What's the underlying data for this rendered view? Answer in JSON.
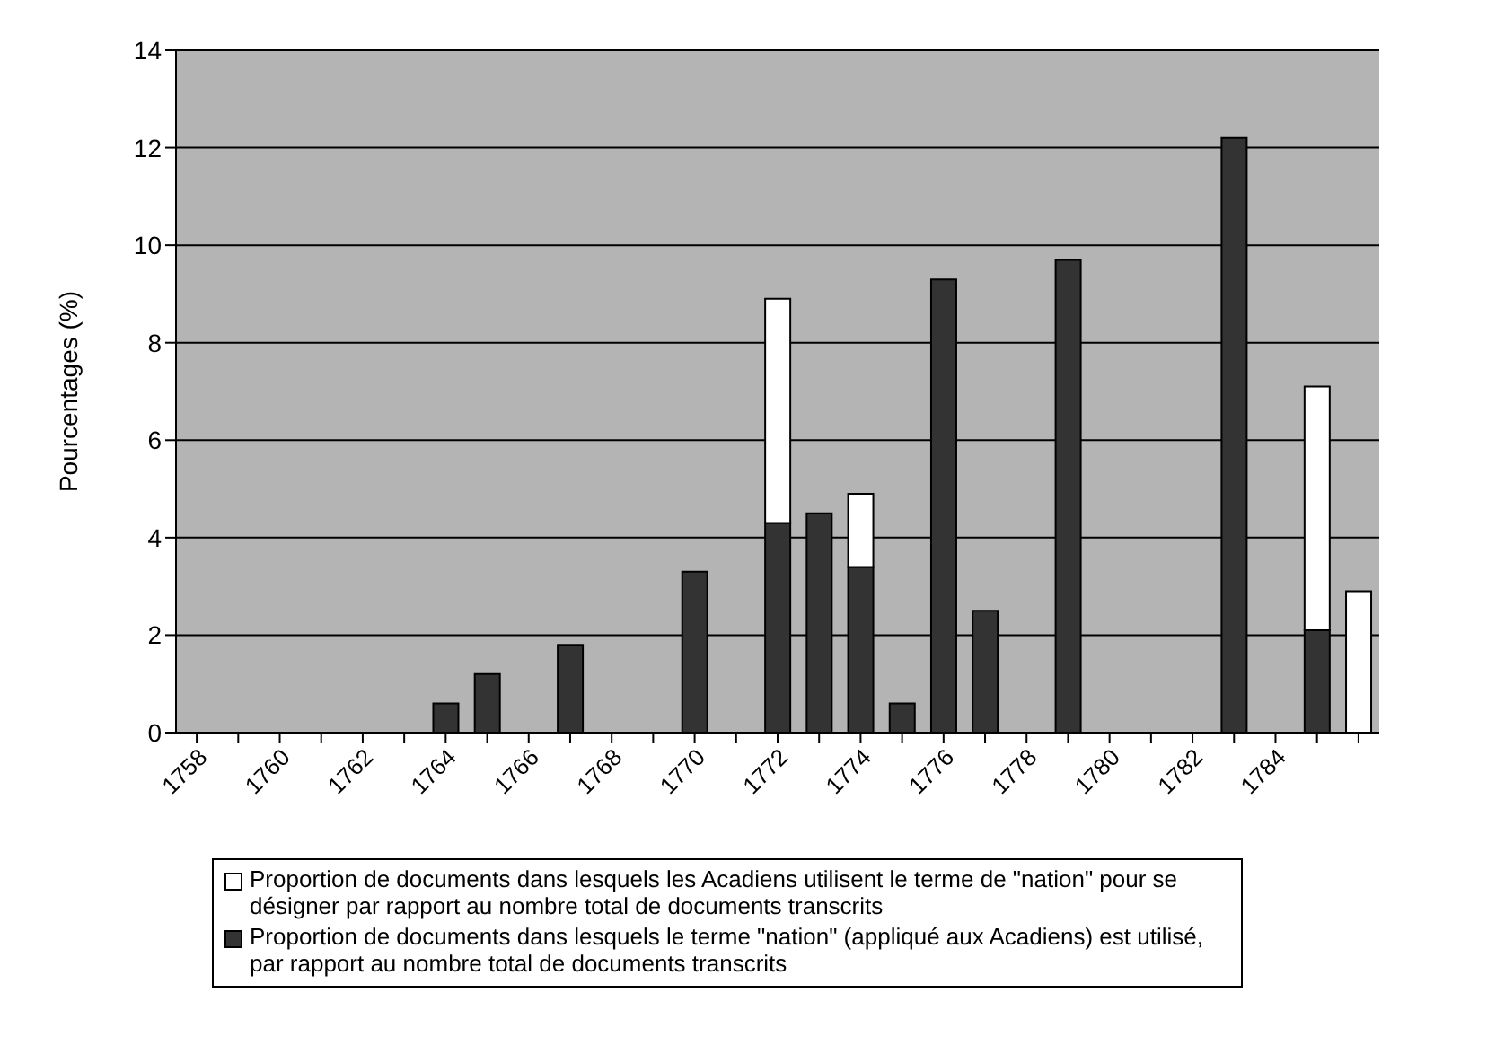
{
  "chart_data": {
    "type": "bar",
    "ylabel": "Pourcentages (%)",
    "categories": [
      "1758",
      null,
      "1760",
      null,
      "1762",
      null,
      "1764",
      null,
      "1766",
      null,
      "1768",
      null,
      "1770",
      null,
      "1772",
      null,
      "1774",
      null,
      "1776",
      null,
      "1778",
      null,
      "1780",
      null,
      "1782",
      null,
      "1784",
      null,
      null
    ],
    "stacked": true,
    "series": [
      {
        "name": "Proportion de documents dans lesquels le terme \"nation\" (appliqué aux Acadiens) est utilisé, par rapport au nombre total de documents transcrits",
        "color": "#333333",
        "values": [
          null,
          null,
          null,
          null,
          null,
          null,
          0.6,
          1.2,
          null,
          1.8,
          null,
          null,
          3.3,
          null,
          4.3,
          4.5,
          3.4,
          0.6,
          9.3,
          2.5,
          null,
          9.7,
          null,
          null,
          null,
          12.2,
          null,
          2.1,
          null
        ]
      },
      {
        "name": "Proportion de documents dans lesquels les Acadiens utilisent le terme de \"nation\" pour se désigner par rapport au nombre total de documents transcrits",
        "color": "#ffffff",
        "values": [
          null,
          null,
          null,
          null,
          null,
          null,
          null,
          null,
          null,
          null,
          null,
          null,
          null,
          null,
          4.6,
          null,
          1.5,
          null,
          null,
          null,
          null,
          null,
          null,
          null,
          null,
          null,
          null,
          5.0,
          2.9
        ]
      }
    ],
    "ylim": [
      0,
      14
    ],
    "yticks": [
      0,
      2,
      4,
      6,
      8,
      10,
      12,
      14
    ],
    "grid": "y",
    "legend": "bottom"
  }
}
